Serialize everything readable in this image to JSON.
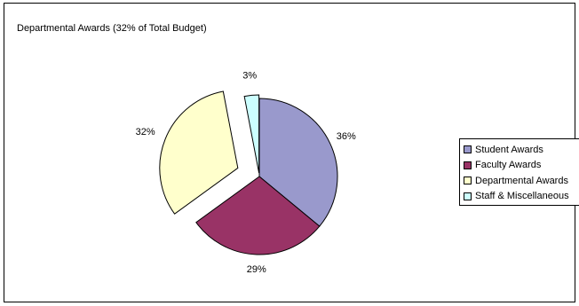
{
  "chart_data": {
    "type": "pie",
    "title": "Departmental Awards (32% of Total Budget)",
    "categories": [
      "Student Awards",
      "Faculty Awards",
      "Departmental Awards",
      "Staff & Miscellaneous"
    ],
    "values": [
      36,
      29,
      32,
      3
    ],
    "labels": [
      "36%",
      "29%",
      "32%",
      "3%"
    ],
    "colors": [
      "#9999cc",
      "#993366",
      "#ffffcc",
      "#ccffff"
    ],
    "exploded": [
      false,
      false,
      true,
      true
    ],
    "start": "12 o'clock, clockwise",
    "legend_position": "right"
  }
}
